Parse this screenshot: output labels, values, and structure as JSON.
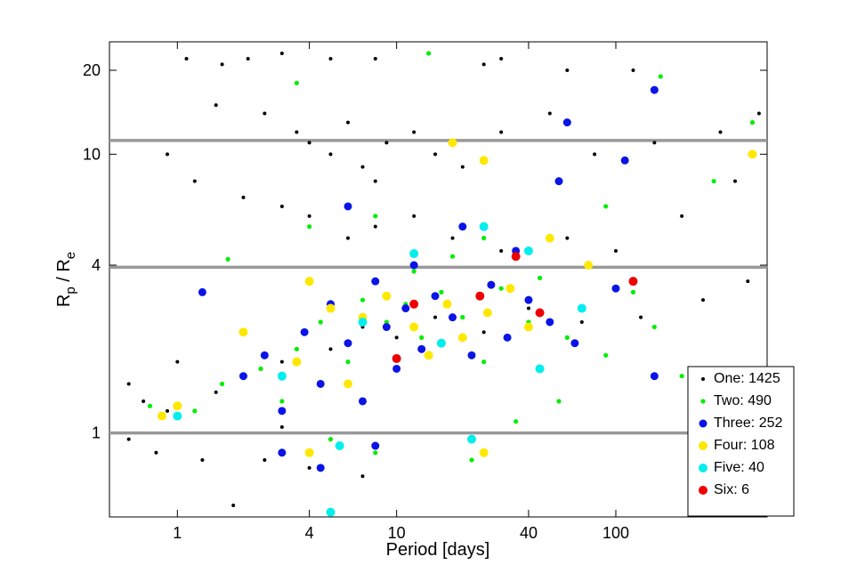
{
  "chart_data": {
    "type": "scatter",
    "xlabel": "Period [days]",
    "ylabel": [
      "R",
      "p",
      " / R",
      "e"
    ],
    "xscale": "log",
    "yscale": "log",
    "xlim": [
      0.49,
      490
    ],
    "ylim": [
      0.5,
      25.3
    ],
    "xticks": [
      1,
      4,
      10,
      40,
      100
    ],
    "yticks": [
      1,
      4,
      10,
      20
    ],
    "hlines": [
      1,
      3.93,
      11.2
    ],
    "hline_color": "#999999",
    "legend": "lower right",
    "series": [
      {
        "name": "One: 1425",
        "color": "#000000",
        "marker_size": 2,
        "x": [
          1.1,
          1.6,
          2.1,
          3,
          5,
          8,
          25,
          30,
          60,
          120,
          1.5,
          2.5,
          3.5,
          4,
          5,
          6,
          7,
          8,
          9,
          12,
          15,
          20,
          30,
          50,
          80,
          150,
          300,
          450,
          0.9,
          1.2,
          2,
          3,
          4,
          6,
          8,
          12,
          18,
          30,
          60,
          100,
          200,
          350,
          0.6,
          0.7,
          0.9,
          1.5,
          2,
          3,
          5,
          7,
          10,
          15,
          25,
          40,
          70,
          130,
          250,
          400,
          0.6,
          0.8,
          1.3,
          1.8,
          2.5,
          4,
          7,
          3,
          1
        ],
        "values": [
          22,
          21,
          22,
          23,
          22,
          22,
          21,
          22,
          20,
          20,
          15,
          14,
          12,
          11,
          10,
          13,
          9,
          8,
          11,
          12,
          10,
          9,
          12,
          14,
          10,
          11,
          12,
          14,
          10,
          8,
          7,
          6.5,
          6,
          5,
          5.5,
          6,
          5,
          4.5,
          5,
          4.5,
          6,
          8,
          1.5,
          1.3,
          1.2,
          1.4,
          1.6,
          1.8,
          2,
          2.4,
          2.2,
          2.6,
          2.3,
          2.8,
          2.5,
          2.6,
          3,
          3.5,
          0.95,
          0.85,
          0.8,
          0.55,
          0.8,
          0.75,
          0.7,
          1.05,
          1.8
        ]
      },
      {
        "name": "Two: 490",
        "color": "#00ee00",
        "marker_size": 2.6,
        "x": [
          0.75,
          1.2,
          1.6,
          2.4,
          3,
          3.5,
          4.5,
          6,
          7,
          9,
          11,
          13,
          16,
          20,
          25,
          30,
          40,
          60,
          90,
          150,
          200,
          1.7,
          4,
          8,
          12,
          22,
          35,
          55,
          5,
          8,
          3.5,
          14,
          160,
          420,
          280,
          90,
          25,
          18,
          45,
          120
        ],
        "values": [
          1.25,
          1.2,
          1.5,
          1.7,
          1.3,
          2,
          2.5,
          1.8,
          3,
          2.5,
          2.9,
          2.2,
          3.2,
          2.6,
          1.8,
          3.3,
          2.5,
          2.2,
          1.9,
          2.4,
          1.6,
          4.2,
          5.5,
          6,
          3.8,
          0.8,
          1.1,
          1.3,
          0.95,
          0.85,
          18,
          23,
          19,
          13,
          8,
          6.5,
          5,
          4.3,
          3.6,
          3.2
        ]
      },
      {
        "name": "Three: 252",
        "color": "#0a14e6",
        "marker_size": 4.5,
        "x": [
          1.3,
          2,
          2.5,
          3,
          3.8,
          4.5,
          5,
          6,
          7,
          8,
          9,
          10,
          11,
          13,
          15,
          18,
          22,
          27,
          32,
          40,
          50,
          65,
          100,
          150,
          3,
          4.5,
          8,
          20,
          35,
          55,
          110,
          150,
          60,
          6,
          12
        ],
        "values": [
          3.2,
          1.6,
          1.9,
          1.2,
          2.3,
          1.5,
          2.9,
          2.1,
          1.3,
          3.5,
          2.4,
          1.7,
          2.8,
          2,
          3.1,
          2.6,
          1.9,
          3.4,
          2.2,
          3,
          2.5,
          2.1,
          3.3,
          1.6,
          0.85,
          0.75,
          0.9,
          5.5,
          4.5,
          8,
          9.5,
          17,
          13,
          6.5,
          4
        ]
      },
      {
        "name": "Four: 108",
        "color": "#ffe800",
        "marker_size": 5,
        "x": [
          0.85,
          1,
          2,
          3.5,
          4,
          5,
          6,
          7,
          9,
          12,
          14,
          17,
          20,
          26,
          33,
          40,
          50,
          75,
          420,
          18,
          25,
          4,
          25
        ],
        "values": [
          1.15,
          1.25,
          2.3,
          1.8,
          3.5,
          2.8,
          1.5,
          2.6,
          3.1,
          2.4,
          1.9,
          2.9,
          2.2,
          2.7,
          3.3,
          2.4,
          5,
          4,
          10,
          11,
          9.5,
          0.85,
          0.85
        ]
      },
      {
        "name": "Five: 40",
        "color": "#00eeee",
        "marker_size": 5,
        "x": [
          1,
          3,
          5,
          5.5,
          7,
          12,
          16,
          22,
          25,
          40,
          45,
          70
        ],
        "values": [
          1.15,
          1.6,
          0.52,
          0.9,
          2.5,
          4.4,
          2.1,
          0.95,
          5.5,
          4.5,
          1.7,
          2.8
        ]
      },
      {
        "name": "Six: 6",
        "color": "#ee0000",
        "marker_size": 5,
        "x": [
          12,
          10,
          24,
          35,
          45,
          120
        ],
        "values": [
          2.9,
          1.85,
          3.1,
          4.3,
          2.7,
          3.5
        ]
      }
    ]
  }
}
